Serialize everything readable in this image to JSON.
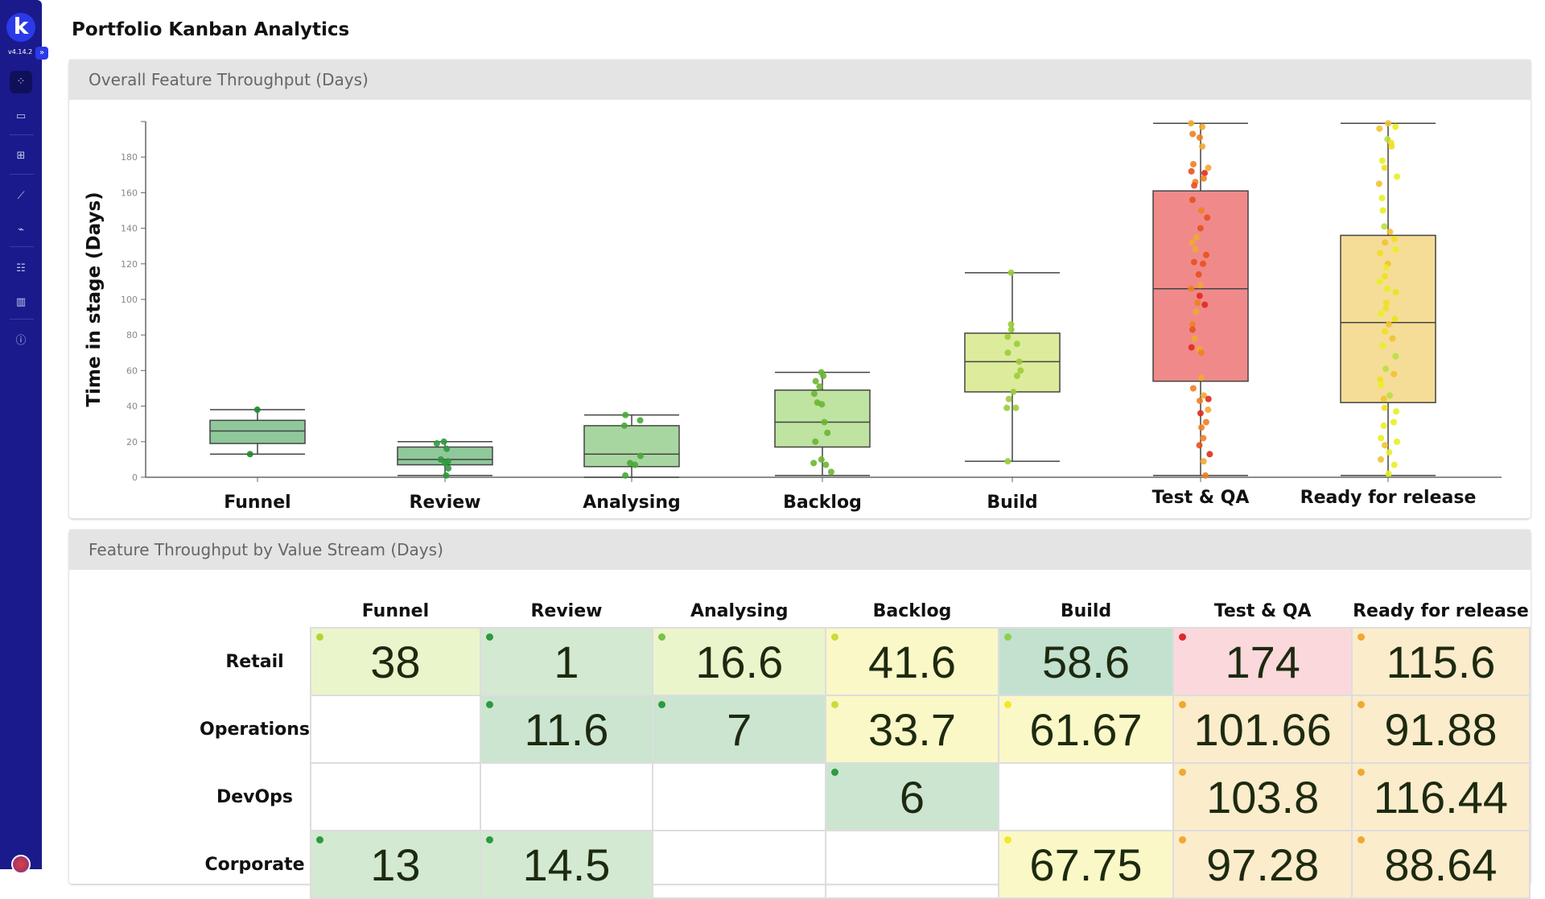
{
  "app": {
    "version": "v4.14.2",
    "logo_letter": "k"
  },
  "sidebar": {
    "items": [
      {
        "icon": "strategy-icon",
        "active": true
      },
      {
        "icon": "briefcase-icon"
      },
      {
        "icon": "calendar-add-icon"
      },
      {
        "icon": "line-chart-icon"
      },
      {
        "icon": "plug-icon"
      },
      {
        "icon": "team-icon"
      },
      {
        "icon": "buildings-icon"
      },
      {
        "icon": "info-icon"
      }
    ]
  },
  "page": {
    "title": "Portfolio Kanban Analytics"
  },
  "panel1": {
    "title": "Overall Feature Throughput (Days)"
  },
  "panel2": {
    "title": "Feature Throughput by Value Stream (Days)"
  },
  "chart_data": {
    "type": "box",
    "ylabel": "Time in stage (Days)",
    "ylim": [
      0,
      200
    ],
    "yticks": [
      0,
      20,
      40,
      60,
      80,
      100,
      120,
      140,
      160,
      180
    ],
    "grid": false,
    "categories": [
      "Funnel",
      "Review",
      "Analysing",
      "Backlog",
      "Build",
      "Test & QA",
      "Ready for release"
    ],
    "box_colors": [
      "#8fc89a",
      "#8fc89a",
      "#a8d6a0",
      "#bfe3a0",
      "#dcec9c",
      "#f08a8a",
      "#f5dd98"
    ],
    "boxes": [
      {
        "min": 13,
        "q1": 19,
        "median": 26,
        "q3": 32,
        "max": 38,
        "points": [
          38,
          13
        ]
      },
      {
        "min": 1,
        "q1": 7,
        "median": 10,
        "q3": 17,
        "max": 20,
        "points": [
          20,
          19,
          16,
          10,
          9,
          8,
          5,
          1
        ]
      },
      {
        "min": 0,
        "q1": 6,
        "median": 13,
        "q3": 29,
        "max": 35,
        "points": [
          35,
          32,
          29,
          12,
          8,
          7,
          1
        ]
      },
      {
        "min": 1,
        "q1": 17,
        "median": 31,
        "q3": 49,
        "max": 59,
        "points": [
          59,
          57,
          54,
          51,
          47,
          42,
          41,
          31,
          25,
          20,
          10,
          8,
          7,
          3
        ]
      },
      {
        "min": 9,
        "q1": 48,
        "median": 65,
        "q3": 81,
        "max": 115,
        "points": [
          115,
          86,
          83,
          79,
          75,
          70,
          65,
          60,
          57,
          48,
          44,
          39,
          39,
          9
        ]
      },
      {
        "min": 1,
        "q1": 54,
        "median": 106,
        "q3": 161,
        "max": 199,
        "points": [
          199,
          197,
          193,
          191,
          186,
          176,
          174,
          172,
          171,
          168,
          166,
          164,
          156,
          150,
          146,
          140,
          135,
          132,
          128,
          125,
          121,
          120,
          114,
          108,
          106,
          102,
          98,
          97,
          93,
          86,
          83,
          78,
          73,
          72,
          70,
          56,
          50,
          46,
          44,
          43,
          38,
          36,
          31,
          28,
          22,
          18,
          13,
          9,
          1
        ]
      },
      {
        "min": 1,
        "q1": 42,
        "median": 87,
        "q3": 136,
        "max": 199,
        "points": [
          199,
          197,
          196,
          190,
          188,
          186,
          178,
          174,
          169,
          165,
          157,
          150,
          141,
          138,
          134,
          132,
          128,
          126,
          120,
          118,
          113,
          110,
          106,
          104,
          98,
          95,
          92,
          89,
          86,
          82,
          78,
          74,
          68,
          61,
          58,
          55,
          52,
          46,
          44,
          39,
          37,
          31,
          29,
          22,
          20,
          18,
          14,
          10,
          7,
          2
        ]
      }
    ],
    "point_colors": [
      "#1e8a2e",
      "#2e9a3e",
      "#48a838",
      "#6ab532",
      "#9ccc38",
      "#e8501e",
      "#e8d020"
    ]
  },
  "table": {
    "columns": [
      "Funnel",
      "Review",
      "Analysing",
      "Backlog",
      "Build",
      "Test & QA",
      "Ready for release"
    ],
    "rows": [
      {
        "label": "Retail",
        "cells": [
          {
            "v": "38",
            "bg": "#ebf5cc",
            "dot": "#b5d334"
          },
          {
            "v": "1",
            "bg": "#d3e9d1",
            "dot": "#2e9a3e"
          },
          {
            "v": "16.6",
            "bg": "#ebf5cc",
            "dot": "#7cc04a"
          },
          {
            "v": "41.6",
            "bg": "#fbf8c8",
            "dot": "#cbdc3a"
          },
          {
            "v": "58.6",
            "bg": "#c2e1cf",
            "dot": "#8ed050"
          },
          {
            "v": "174",
            "bg": "#fbd8dc",
            "dot": "#e0282a"
          },
          {
            "v": "115.6",
            "bg": "#fbeccc",
            "dot": "#f0a830"
          }
        ]
      },
      {
        "label": "Operations",
        "cells": [
          null,
          {
            "v": "11.6",
            "bg": "#cbe5d0",
            "dot": "#2e9a3e"
          },
          {
            "v": "7",
            "bg": "#cbe5d0",
            "dot": "#2e9a3e"
          },
          {
            "v": "33.7",
            "bg": "#fbf8c8",
            "dot": "#cbdc3a"
          },
          {
            "v": "61.67",
            "bg": "#fbf8c8",
            "dot": "#f2e82a"
          },
          {
            "v": "101.66",
            "bg": "#fbeccc",
            "dot": "#f0a830"
          },
          {
            "v": "91.88",
            "bg": "#fbeccc",
            "dot": "#f0a830"
          }
        ]
      },
      {
        "label": "DevOps",
        "cells": [
          null,
          null,
          null,
          {
            "v": "6",
            "bg": "#cbe5d0",
            "dot": "#2e9a3e"
          },
          null,
          {
            "v": "103.8",
            "bg": "#fbeccc",
            "dot": "#f0a830"
          },
          {
            "v": "116.44",
            "bg": "#fbeccc",
            "dot": "#f0a830"
          }
        ]
      },
      {
        "label": "Corporate",
        "cells": [
          {
            "v": "13",
            "bg": "#d3e9d1",
            "dot": "#2e9a3e"
          },
          {
            "v": "14.5",
            "bg": "#d3e9d1",
            "dot": "#2e9a3e"
          },
          null,
          null,
          {
            "v": "67.75",
            "bg": "#fbf8c8",
            "dot": "#f2e82a"
          },
          {
            "v": "97.28",
            "bg": "#fbeccc",
            "dot": "#f0a830"
          },
          {
            "v": "88.64",
            "bg": "#fbeccc",
            "dot": "#f0a830"
          }
        ]
      }
    ]
  }
}
